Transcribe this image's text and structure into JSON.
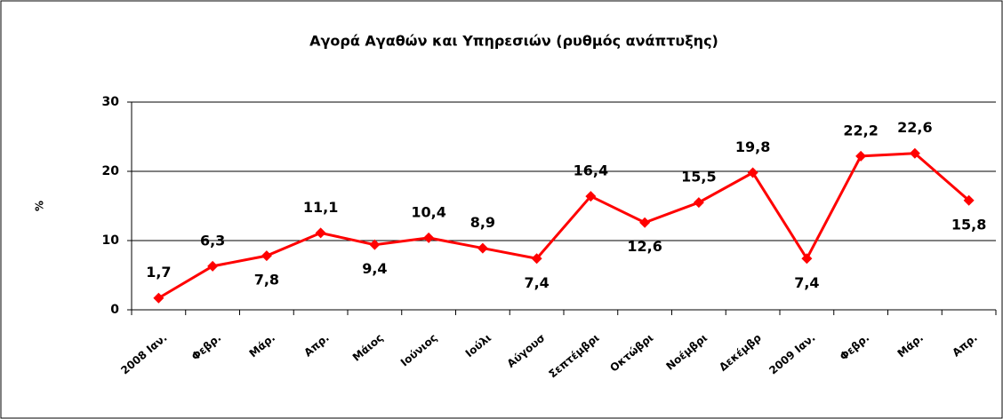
{
  "chart_data": {
    "type": "line",
    "title": "Αγορά Αγαθών και Υπηρεσιών (ρυθμός ανάπτυξης)",
    "y_label": "%",
    "categories": [
      "2008 Ιαν.",
      "Φεβρ.",
      "Μάρ.",
      "Απρ.",
      "Μάιος",
      "Ιούνιος",
      "Ιούλι",
      "Αύγουσ",
      "Σεπτέμβρι",
      "Οκτώβρι",
      "Νοέμβρι",
      "Δεκέμβρ",
      "2009 Ιαν.",
      "Φεβρ.",
      "Μάρ.",
      "Απρ."
    ],
    "series": [
      {
        "name": "Αγορά Αγαθών και Υπηρεσιών",
        "color": "#ff0000",
        "values": [
          1.7,
          6.3,
          7.8,
          11.1,
          9.4,
          10.4,
          8.9,
          7.4,
          16.4,
          12.6,
          15.5,
          19.8,
          7.4,
          22.2,
          22.6,
          15.8
        ],
        "value_labels": [
          "1,7",
          "6,3",
          "7,8",
          "11,1",
          "9,4",
          "10,4",
          "8,9",
          "7,4",
          "16,4",
          "12,6",
          "15,5",
          "19,8",
          "7,4",
          "22,2",
          "22,6",
          "15,8"
        ]
      }
    ],
    "ylim": [
      0,
      30
    ],
    "yticks": [
      0,
      10,
      20,
      30
    ],
    "grid": true
  }
}
